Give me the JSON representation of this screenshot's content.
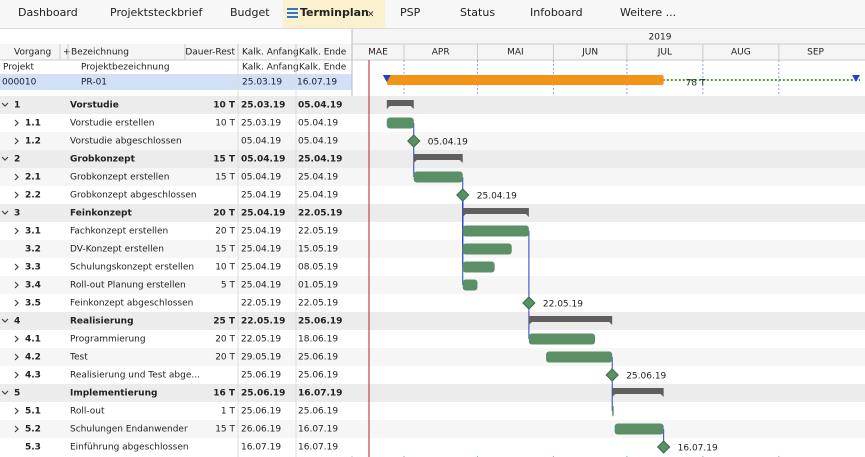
{
  "tabs": [
    "Dashboard",
    "Projektsteckbrief",
    "Budget",
    "Terminplan",
    "PSP",
    "Status",
    "Infoboard",
    "Weitere ..."
  ],
  "active_tab": 3,
  "columns": {
    "vorgang": "Vorgang",
    "plus": "+",
    "bezeichnung": "Bezeichnung",
    "dauer": "Dauer-Rest",
    "anfang": "Kalk. Anfang",
    "ende": "Kalk. Ende"
  },
  "subheader": {
    "projekt": "Projekt",
    "bezeichnung": "Projektbezeichnung",
    "anfang": "Kalk. Anfang",
    "ende": "Kalk. Ende"
  },
  "project": {
    "id": "000010",
    "name": "PR-01",
    "start": "25.03.19",
    "end": "16.07.19",
    "duration_label": "78 T"
  },
  "timeline": {
    "year": "2019",
    "months": [
      "MAE",
      "APR",
      "MAI",
      "JUN",
      "JUL",
      "AUG",
      "SEP"
    ]
  },
  "rows": [
    {
      "id": "1",
      "name": "Vorstudie",
      "duration": "10 T",
      "start": "25.03.19",
      "end": "05.04.19",
      "kind": "summary",
      "expandable": true
    },
    {
      "id": "1.1",
      "name": "Vorstudie erstellen",
      "duration": "10 T",
      "start": "25.03.19",
      "end": "05.04.19",
      "kind": "task",
      "expandable": true
    },
    {
      "id": "1.2",
      "name": "Vorstudie abgeschlossen",
      "start": "05.04.19",
      "end": "05.04.19",
      "kind": "milestone",
      "expandable": true
    },
    {
      "id": "2",
      "name": "Grobkonzept",
      "duration": "15 T",
      "start": "05.04.19",
      "end": "25.04.19",
      "kind": "summary",
      "expandable": true
    },
    {
      "id": "2.1",
      "name": "Grobkonzept erstellen",
      "duration": "15 T",
      "start": "05.04.19",
      "end": "25.04.19",
      "kind": "task",
      "expandable": true
    },
    {
      "id": "2.2",
      "name": "Grobkonzept abgeschlossen",
      "start": "25.04.19",
      "end": "25.04.19",
      "kind": "milestone",
      "expandable": true
    },
    {
      "id": "3",
      "name": "Feinkonzept",
      "duration": "20 T",
      "start": "25.04.19",
      "end": "22.05.19",
      "kind": "summary",
      "expandable": true
    },
    {
      "id": "3.1",
      "name": "Fachkonzept erstellen",
      "duration": "20 T",
      "start": "25.04.19",
      "end": "22.05.19",
      "kind": "task",
      "expandable": true
    },
    {
      "id": "3.2",
      "name": "DV-Konzept erstellen",
      "duration": "15 T",
      "start": "25.04.19",
      "end": "15.05.19",
      "kind": "task",
      "expandable": false
    },
    {
      "id": "3.3",
      "name": "Schulungskonzept erstellen",
      "duration": "10 T",
      "start": "25.04.19",
      "end": "08.05.19",
      "kind": "task",
      "expandable": true
    },
    {
      "id": "3.4",
      "name": "Roll-out Planung erstellen",
      "duration": "5 T",
      "start": "25.04.19",
      "end": "01.05.19",
      "kind": "task",
      "expandable": true
    },
    {
      "id": "3.5",
      "name": "Feinkonzept abgeschlossen",
      "start": "22.05.19",
      "end": "22.05.19",
      "kind": "milestone",
      "expandable": true
    },
    {
      "id": "4",
      "name": "Realisierung",
      "duration": "25 T",
      "start": "22.05.19",
      "end": "25.06.19",
      "kind": "summary",
      "expandable": true
    },
    {
      "id": "4.1",
      "name": "Programmierung",
      "duration": "20 T",
      "start": "22.05.19",
      "end": "18.06.19",
      "kind": "task",
      "expandable": true
    },
    {
      "id": "4.2",
      "name": "Test",
      "duration": "20 T",
      "start": "29.05.19",
      "end": "25.06.19",
      "kind": "task",
      "expandable": true
    },
    {
      "id": "4.3",
      "name": "Realisierung und Test abge...",
      "start": "25.06.19",
      "end": "25.06.19",
      "kind": "milestone",
      "expandable": true
    },
    {
      "id": "5",
      "name": "Implementierung",
      "duration": "16 T",
      "start": "25.06.19",
      "end": "16.07.19",
      "kind": "summary",
      "expandable": true
    },
    {
      "id": "5.1",
      "name": "Roll-out",
      "duration": "1 T",
      "start": "25.06.19",
      "end": "25.06.19",
      "kind": "task",
      "expandable": true
    },
    {
      "id": "5.2",
      "name": "Schulungen Endanwender",
      "duration": "15 T",
      "start": "26.06.19",
      "end": "16.07.19",
      "kind": "task",
      "expandable": true
    },
    {
      "id": "5.3",
      "name": "Einführung abgeschlossen",
      "start": "16.07.19",
      "end": "16.07.19",
      "kind": "milestone",
      "expandable": false
    }
  ]
}
